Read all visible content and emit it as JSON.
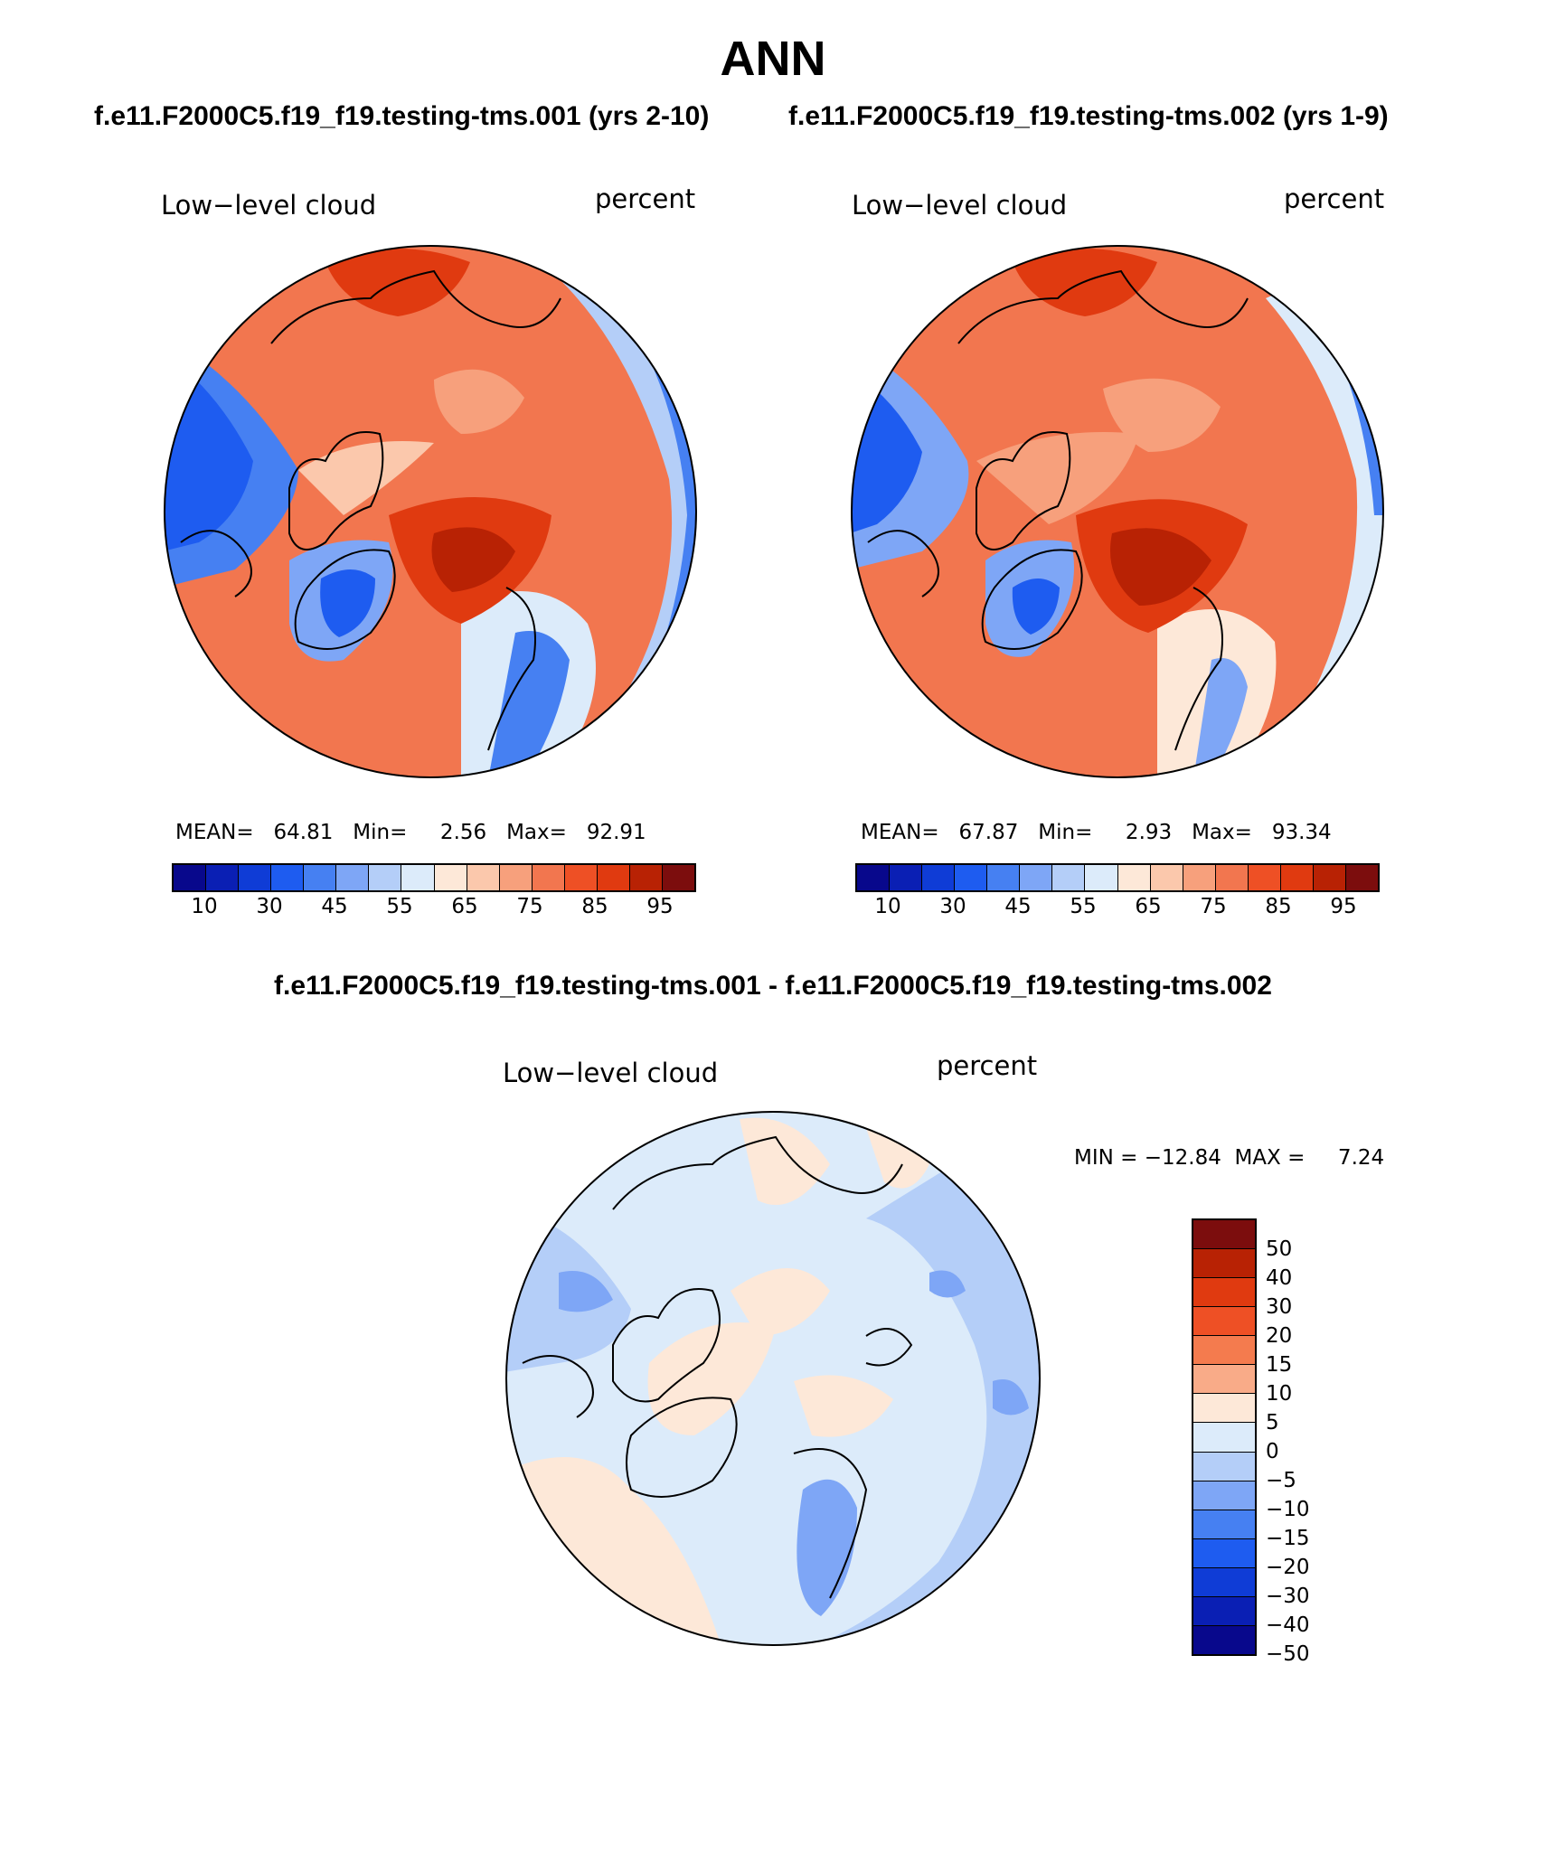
{
  "title": "ANN",
  "subtitles": {
    "left": "f.e11.F2000C5.f19_f19.testing-tms.001 (yrs 2-10)",
    "right": "f.e11.F2000C5.f19_f19.testing-tms.002 (yrs 1-9)"
  },
  "difference_title": "f.e11.F2000C5.f19_f19.testing-tms.001 - f.e11.F2000C5.f19_f19.testing-tms.002",
  "panels": [
    {
      "variable": "Low−level cloud",
      "units": "percent",
      "stats": "MEAN=   64.81   Min=     2.56   Max=   92.91",
      "mean": 64.81,
      "min": 2.56,
      "max": 92.91
    },
    {
      "variable": "Low−level cloud",
      "units": "percent",
      "stats": "MEAN=   67.87   Min=     2.93   Max=   93.34",
      "mean": 67.87,
      "min": 2.93,
      "max": 93.34
    },
    {
      "variable": "Low−level cloud",
      "units": "percent",
      "stats": "MIN = −12.84  MAX =     7.24",
      "min": -12.84,
      "max": 7.24
    }
  ],
  "colorbar_abs": {
    "colors": [
      "#08088c",
      "#0a1fb4",
      "#0f3cd6",
      "#1e5cf0",
      "#4680f2",
      "#7ea6f6",
      "#b4cef8",
      "#dcebfa",
      "#fde8d8",
      "#fbc8ac",
      "#f7a07c",
      "#f2764f",
      "#ee5025",
      "#e03a10",
      "#b82204",
      "#7c0d0d"
    ],
    "tick_labels": [
      "10",
      "30",
      "45",
      "55",
      "65",
      "75",
      "85",
      "95"
    ]
  },
  "colorbar_diff": {
    "colors": [
      "#7c0d0d",
      "#b82204",
      "#e03a10",
      "#ee5025",
      "#f47b4e",
      "#f9ab88",
      "#fde8d8",
      "#dcebfa",
      "#b4cef8",
      "#7ea6f6",
      "#4680f2",
      "#1e5cf0",
      "#0f3cd6",
      "#0a1fb4",
      "#08088c"
    ],
    "tick_labels": [
      "50",
      "40",
      "30",
      "20",
      "15",
      "10",
      "5",
      "0",
      "−5",
      "−10",
      "−15",
      "−20",
      "−30",
      "−40",
      "−50"
    ]
  }
}
